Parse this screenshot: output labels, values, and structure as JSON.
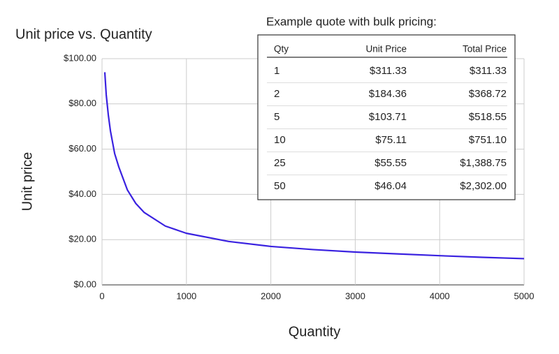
{
  "chart_data": {
    "type": "line",
    "title": "Unit price vs. Quantity",
    "x_label": "Quantity",
    "y_label": "Unit price",
    "x": [
      33,
      50,
      75,
      100,
      150,
      200,
      300,
      400,
      500,
      750,
      1000,
      1500,
      2000,
      2500,
      3000,
      3500,
      4000,
      4500,
      5000
    ],
    "series": [
      {
        "name": "Unit price",
        "color": "#3a22e0",
        "values": [
          94,
          84,
          75,
          68,
          58,
          52,
          42,
          36,
          32,
          26,
          22.8,
          19.2,
          17,
          15.6,
          14.5,
          13.7,
          12.9,
          12.2,
          11.6
        ]
      }
    ],
    "xlim": [
      0,
      5000
    ],
    "xticks": [
      0,
      1000,
      2000,
      3000,
      4000,
      5000
    ],
    "ylim": [
      0,
      100
    ],
    "yticks": [
      {
        "value": 0,
        "label": "$0.00"
      },
      {
        "value": 20,
        "label": "$20.00"
      },
      {
        "value": 40,
        "label": "$40.00"
      },
      {
        "value": 60,
        "label": "$60.00"
      },
      {
        "value": 80,
        "label": "$80.00"
      },
      {
        "value": 100,
        "label": "$100.00"
      }
    ],
    "grid": true
  },
  "table": {
    "title": "Example quote with bulk pricing:",
    "header": [
      "Qty",
      "Unit Price",
      "Total Price"
    ],
    "rows": [
      [
        "1",
        "$311.33",
        "$311.33"
      ],
      [
        "2",
        "$184.36",
        "$368.72"
      ],
      [
        "5",
        "$103.71",
        "$518.55"
      ],
      [
        "10",
        "$75.11",
        "$751.10"
      ],
      [
        "25",
        "$55.55",
        "$1,388.75"
      ],
      [
        "50",
        "$46.04",
        "$2,302.00"
      ]
    ]
  }
}
